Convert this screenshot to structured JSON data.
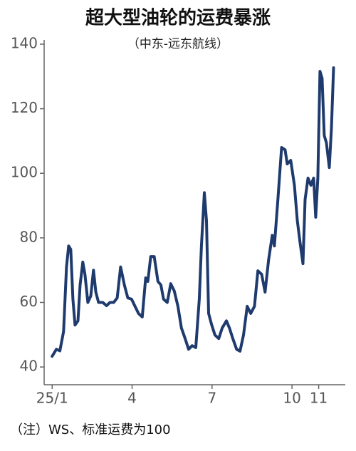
{
  "chart_data": {
    "type": "line",
    "title": "超大型油轮的运费暴涨",
    "subtitle": "（中东-远东航线）",
    "note": "（注）WS、标准运费为100",
    "color": "#1f3b6e",
    "xlim": [
      0.7,
      12
    ],
    "xticks": [
      {
        "value": 1,
        "label": "25/1"
      },
      4,
      7,
      10,
      11
    ],
    "ylim": [
      34.5,
      140
    ],
    "yticks": [
      40,
      60,
      80,
      100,
      120,
      140
    ],
    "grid": false,
    "x": [
      1.0,
      1.16,
      1.29,
      1.43,
      1.54,
      1.62,
      1.7,
      1.78,
      1.86,
      1.97,
      2.05,
      2.15,
      2.23,
      2.34,
      2.45,
      2.55,
      2.64,
      2.74,
      2.9,
      3.04,
      3.17,
      3.31,
      3.44,
      3.57,
      3.71,
      3.84,
      3.98,
      4.11,
      4.24,
      4.38,
      4.51,
      4.59,
      4.7,
      4.83,
      4.97,
      5.08,
      5.18,
      5.32,
      5.45,
      5.58,
      5.72,
      5.85,
      5.99,
      6.12,
      6.25,
      6.39,
      6.52,
      6.6,
      6.71,
      6.79,
      6.87,
      6.98,
      7.11,
      7.25,
      7.38,
      7.54,
      7.65,
      7.78,
      7.92,
      8.05,
      8.18,
      8.32,
      8.45,
      8.59,
      8.72,
      8.86,
      8.99,
      9.12,
      9.26,
      9.34,
      9.47,
      9.61,
      9.74,
      9.82,
      9.95,
      10.09,
      10.2,
      10.3,
      10.41,
      10.49,
      10.6,
      10.71,
      10.81,
      10.89,
      10.97,
      11.05,
      11.13,
      11.21,
      11.29,
      11.4,
      11.48,
      11.56
    ],
    "values": [
      43.3,
      45.5,
      45,
      51,
      71,
      77.5,
      76.4,
      61,
      53,
      54.3,
      65.4,
      72.5,
      68.7,
      60,
      62,
      70,
      63.2,
      60,
      60,
      59,
      60,
      60,
      61.4,
      71,
      65.4,
      61.4,
      61,
      58.8,
      56.6,
      55.5,
      67.6,
      66.5,
      74.2,
      74.2,
      66.5,
      65.4,
      61,
      60,
      65.8,
      63.6,
      58.8,
      52.1,
      48.8,
      45.5,
      46.6,
      46,
      61,
      77.5,
      94,
      85.3,
      56.6,
      53.2,
      49.9,
      48.8,
      52.1,
      54.3,
      52.1,
      48.8,
      45.5,
      44.9,
      49.9,
      58.8,
      56.6,
      58.8,
      69.8,
      68.7,
      63.2,
      73.1,
      80.8,
      77.5,
      91.9,
      108,
      107.3,
      102.9,
      104,
      96.3,
      85.3,
      78.6,
      72,
      91.9,
      98.5,
      96.3,
      98.5,
      86.4,
      98.5,
      131.6,
      129.4,
      111.7,
      109.5,
      101.8,
      114,
      132.7
    ]
  }
}
